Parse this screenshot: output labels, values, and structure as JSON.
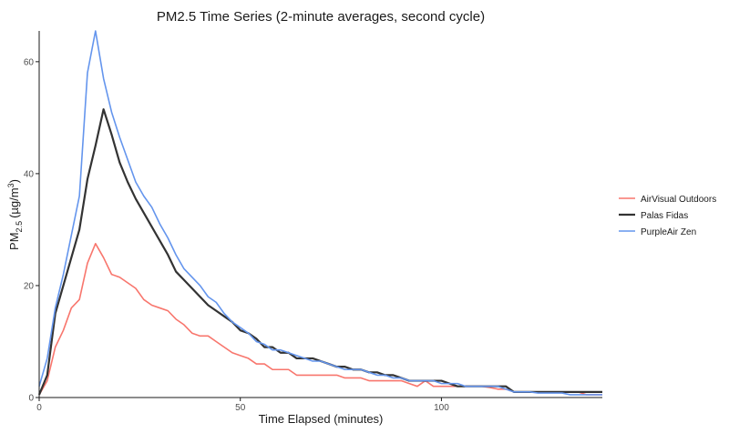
{
  "chart_data": {
    "type": "line",
    "title": "PM2.5 Time Series (2-minute averages, second cycle)",
    "xlabel": "Time Elapsed (minutes)",
    "ylabel_main": "PM",
    "ylabel_sub": "2.5",
    "ylabel_paren_open": "(",
    "ylabel_unit": "µg/m",
    "ylabel_sup": "3",
    "ylabel_paren_close": ")",
    "xlim": [
      0,
      140
    ],
    "ylim": [
      0,
      65.5
    ],
    "xticks": [
      0,
      50,
      100
    ],
    "yticks": [
      0,
      20,
      40,
      60
    ],
    "xtick_labels": [
      "0",
      "50",
      "100"
    ],
    "ytick_labels": [
      "0",
      "20",
      "40",
      "60"
    ],
    "legend_position": "right",
    "series": [
      {
        "name": "AirVisual Outdoors",
        "color": "#F8766D",
        "x": [
          0,
          2,
          4,
          6,
          8,
          10,
          12,
          14,
          16,
          18,
          20,
          22,
          24,
          26,
          28,
          30,
          32,
          34,
          36,
          38,
          40,
          42,
          44,
          46,
          48,
          50,
          52,
          54,
          56,
          58,
          60,
          62,
          64,
          66,
          68,
          70,
          72,
          74,
          76,
          78,
          80,
          82,
          84,
          86,
          88,
          90,
          92,
          94,
          96,
          98,
          100,
          102,
          104,
          106,
          108,
          110,
          112,
          114,
          116,
          118,
          120,
          122,
          124,
          126,
          128,
          130,
          132,
          134,
          136,
          138,
          140
        ],
        "values": [
          0.5,
          3,
          9,
          12,
          16,
          17.5,
          24,
          27.5,
          25,
          22,
          21.5,
          20.5,
          19.5,
          17.5,
          16.5,
          16,
          15.5,
          14,
          13,
          11.5,
          11,
          11,
          10,
          9,
          8,
          7.5,
          7,
          6,
          6,
          5,
          5,
          5,
          4,
          4,
          4,
          4,
          4,
          4,
          3.5,
          3.5,
          3.5,
          3,
          3,
          3,
          3,
          3,
          2.5,
          2,
          3,
          2,
          2,
          2,
          2,
          2,
          2,
          2,
          1.8,
          1.5,
          1.5,
          1,
          1,
          1,
          1,
          1,
          1,
          1,
          1,
          1,
          0.5,
          0.5,
          0.5
        ]
      },
      {
        "name": "Palas Fidas",
        "color": "#333333",
        "x": [
          0,
          2,
          4,
          6,
          8,
          10,
          12,
          14,
          16,
          18,
          20,
          22,
          24,
          26,
          28,
          30,
          32,
          34,
          36,
          38,
          40,
          42,
          44,
          46,
          48,
          50,
          52,
          54,
          56,
          58,
          60,
          62,
          64,
          66,
          68,
          70,
          72,
          74,
          76,
          78,
          80,
          82,
          84,
          86,
          88,
          90,
          92,
          94,
          96,
          98,
          100,
          102,
          104,
          106,
          108,
          110,
          112,
          114,
          116,
          118,
          120,
          122,
          124,
          126,
          128,
          130,
          132,
          134,
          136,
          138,
          140
        ],
        "values": [
          0.5,
          4,
          15,
          20,
          25,
          30,
          39,
          45,
          51.5,
          47,
          42,
          38.5,
          35.5,
          33,
          30.5,
          28,
          25.5,
          22.5,
          21,
          19.5,
          18,
          16.5,
          15.5,
          14.5,
          13.5,
          12,
          11.5,
          10.5,
          9,
          9,
          8,
          8,
          7,
          7,
          7,
          6.5,
          6,
          5.5,
          5.5,
          5,
          5,
          4.5,
          4.5,
          4,
          4,
          3.5,
          3,
          3,
          3,
          3,
          3,
          2.5,
          2,
          2,
          2,
          2,
          2,
          2,
          2,
          1,
          1,
          1,
          1,
          1,
          1,
          1,
          1,
          1,
          1,
          1,
          1
        ]
      },
      {
        "name": "PurpleAir Zen",
        "color": "#6495ED",
        "x": [
          0,
          2,
          4,
          6,
          8,
          10,
          12,
          14,
          16,
          18,
          20,
          22,
          24,
          26,
          28,
          30,
          32,
          34,
          36,
          38,
          40,
          42,
          44,
          46,
          48,
          50,
          52,
          54,
          56,
          58,
          60,
          62,
          64,
          66,
          68,
          70,
          72,
          74,
          76,
          78,
          80,
          82,
          84,
          86,
          88,
          90,
          92,
          94,
          96,
          98,
          100,
          102,
          104,
          106,
          108,
          110,
          112,
          114,
          116,
          118,
          120,
          122,
          124,
          126,
          128,
          130,
          132,
          134,
          136,
          138,
          140
        ],
        "values": [
          2,
          7,
          16,
          22,
          29,
          36,
          58,
          65.5,
          57,
          51,
          46.5,
          42.5,
          38.5,
          36,
          34,
          31,
          28.5,
          25.5,
          23,
          21.5,
          20,
          18,
          17,
          15,
          13.5,
          12.5,
          11.5,
          10,
          9.5,
          8.5,
          8.5,
          8,
          7.5,
          7,
          6.5,
          6.5,
          6,
          5.5,
          5,
          5,
          5,
          4.5,
          4,
          4,
          3.5,
          3.5,
          3,
          3,
          3,
          3,
          2.5,
          2.5,
          2.5,
          2,
          2,
          2,
          2,
          2,
          1.5,
          1,
          1,
          1,
          0.8,
          0.8,
          0.8,
          0.8,
          0.5,
          0.5,
          0.5,
          0.5,
          0.5
        ]
      }
    ]
  }
}
